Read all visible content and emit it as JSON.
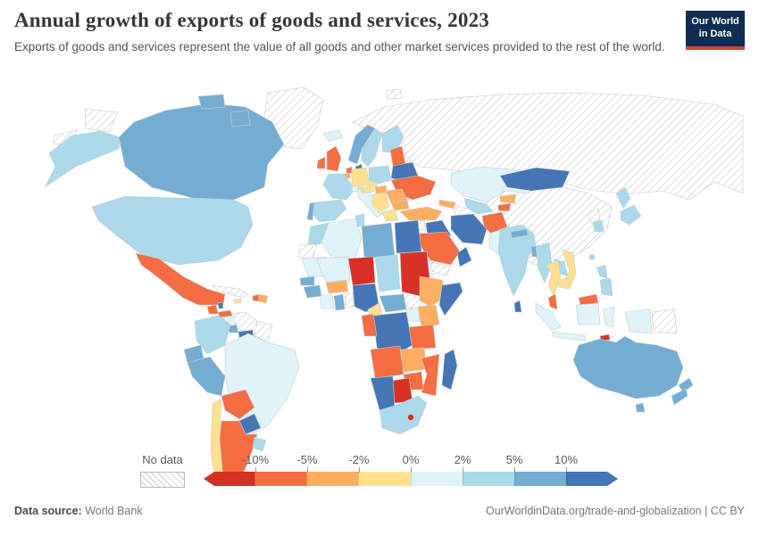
{
  "header": {
    "title": "Annual growth of exports of goods and services, 2023",
    "subtitle": "Exports of goods and services represent the value of all goods and other market services provided to the rest of the world.",
    "logo": {
      "line1": "Our World",
      "line2": "in Data",
      "bg_color": "#0d2d52",
      "stripe_color": "#dc3f3f"
    }
  },
  "legend": {
    "no_data_label": "No data",
    "ticks": [
      "-10%",
      "-5%",
      "-2%",
      "0%",
      "2%",
      "5%",
      "10%"
    ]
  },
  "footer": {
    "source_label": "Data source:",
    "source_value": " World Bank",
    "link": "OurWorldinData.org/trade-and-globalization | CC BY"
  },
  "chart_data": {
    "type": "choropleth-map",
    "title": "Annual growth of exports of goods and services, 2023",
    "unit": "%",
    "data_source": "World Bank",
    "legend_ticks": [
      "-10%",
      "-5%",
      "-2%",
      "0%",
      "2%",
      "5%",
      "10%"
    ],
    "bins": [
      {
        "key": "lt_n10",
        "label": "less than -10%",
        "color": "#d73027"
      },
      {
        "key": "n10_n5",
        "label": "-10% to -5%",
        "color": "#f46d43"
      },
      {
        "key": "n5_n2",
        "label": "-5% to -2%",
        "color": "#fdae61"
      },
      {
        "key": "n2_0",
        "label": "-2% to 0%",
        "color": "#fee090"
      },
      {
        "key": "p0_2",
        "label": "0% to 2%",
        "color": "#e0f3f8"
      },
      {
        "key": "p2_5",
        "label": "2% to 5%",
        "color": "#abd9e9"
      },
      {
        "key": "p5_10",
        "label": "5% to 10%",
        "color": "#74add1"
      },
      {
        "key": "gt_10",
        "label": "more than 10%",
        "color": "#4575b4"
      },
      {
        "key": "no_data",
        "label": "No data",
        "color": "hatch"
      }
    ],
    "regions": {
      "greenland": "no_data",
      "alaska": "p2_5",
      "canada": "p5_10",
      "united-states": "p2_5",
      "mexico": "n10_n5",
      "guatemala": "n10_n5",
      "belize": "gt_10",
      "honduras": "n10_n5",
      "nicaragua": "p0_2",
      "costa-rica": "p5_10",
      "panama": "gt_10",
      "cuba": "no_data",
      "jamaica": "n2_0",
      "haiti": "n10_n5",
      "dominican-republic": "n5_n2",
      "colombia": "p2_5",
      "venezuela": "no_data",
      "guyana": "no_data",
      "ecuador": "p5_10",
      "peru": "p5_10",
      "brazil": "p0_2",
      "bolivia": "n10_n5",
      "paraguay": "gt_10",
      "chile": "n2_0",
      "argentina": "n10_n5",
      "uruguay": "p2_5",
      "iceland": "p0_2",
      "norway": "p5_10",
      "sweden": "p2_5",
      "finland": "p2_5",
      "denmark": "gt_10",
      "united-kingdom": "n10_n5",
      "ireland": "n10_n5",
      "netherlands": "n10_n5",
      "belgium": "n5_n2",
      "germany": "n2_0",
      "france": "p2_5",
      "spain": "p2_5",
      "portugal": "p5_10",
      "italy": "p0_2",
      "switzerland": "p0_2",
      "austria": "n2_0",
      "czechia": "n2_0",
      "poland": "p2_5",
      "baltic-states": "n10_n5",
      "belarus": "gt_10",
      "ukraine": "n10_n5",
      "romania": "n5_n2",
      "hungary": "n5_n2",
      "balkans": "n2_0",
      "greece": "n2_0",
      "bulgaria": "n5_n2",
      "turkey": "n5_n2",
      "caucasus": "n5_n2",
      "russia": "no_data",
      "svalbard": "no_data",
      "kazakhstan": "p0_2",
      "uzbekistan": "p2_5",
      "turkmenistan": "no_data",
      "kyrgyzstan": "n5_n2",
      "tajikistan": "n10_n5",
      "mongolia": "gt_10",
      "china": "no_data",
      "north-korea": "no_data",
      "south-korea": "p2_5",
      "japan": "p2_5",
      "taiwan": "p2_5",
      "syria": "no_data",
      "iraq": "gt_10",
      "iran": "gt_10",
      "afghanistan": "n10_n5",
      "pakistan": "p0_2",
      "india": "p2_5",
      "nepal": "p5_10",
      "bangladesh": "p5_10",
      "sri-lanka": "gt_10",
      "myanmar": "p2_5",
      "thailand": "n2_0",
      "laos": "p2_5",
      "vietnam": "n2_0",
      "cambodia": "n2_0",
      "malaysia": "n10_n5",
      "indonesia": "p0_2",
      "philippines": "p2_5",
      "papua-new-guinea": "no_data",
      "timor-leste": "lt_n10",
      "australia": "p5_10",
      "new-zealand": "p5_10",
      "saudi-arabia": "n10_n5",
      "yemen": "no_data",
      "oman": "gt_10",
      "morocco": "p2_5",
      "western-sahara": "no_data",
      "algeria": "p0_2",
      "tunisia": "p2_5",
      "libya": "p5_10",
      "egypt": "gt_10",
      "mauritania": "p0_2",
      "mali": "p0_2",
      "niger": "lt_n10",
      "chad": "p2_5",
      "sudan": "lt_n10",
      "eritrea": "no_data",
      "senegal": "p5_10",
      "guinea": "p5_10",
      "ivory-coast": "p0_2",
      "burkina-faso": "n5_n2",
      "ghana": "p5_10",
      "togo-benin": "no_data",
      "nigeria": "gt_10",
      "cameroon": "n2_0",
      "central-african-republic": "p5_10",
      "south-sudan": "no_data",
      "ethiopia": "n5_n2",
      "somalia": "gt_10",
      "kenya": "n5_n2",
      "uganda": "p0_2",
      "democratic-republic-of-congo": "gt_10",
      "congo": "n10_n5",
      "tanzania": "n10_n5",
      "angola": "n10_n5",
      "zambia": "n5_n2",
      "mozambique": "n10_n5",
      "zimbabwe": "n10_n5",
      "botswana": "lt_n10",
      "namibia": "gt_10",
      "south-africa": "p2_5",
      "lesotho": "lt_n10",
      "madagascar": "gt_10"
    }
  }
}
